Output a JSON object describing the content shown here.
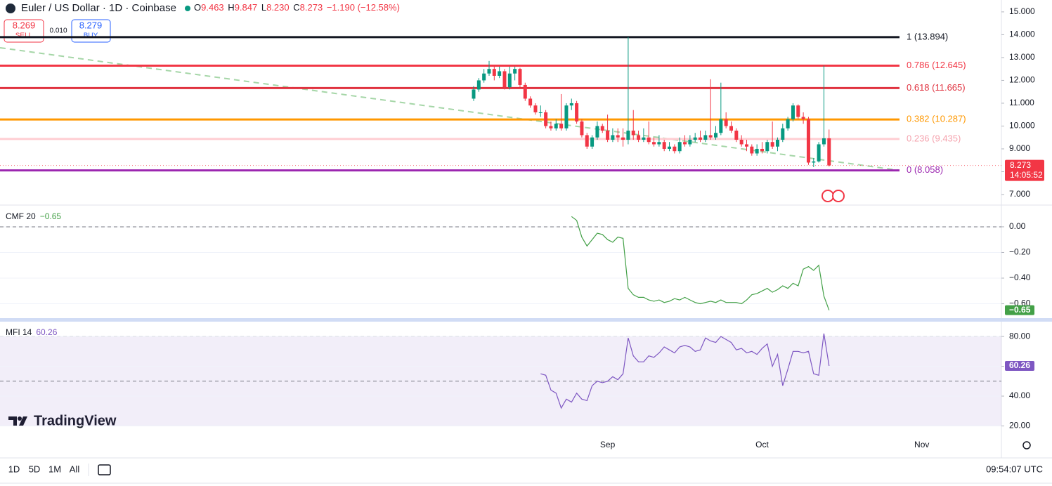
{
  "header": {
    "ohlc": [
      {
        "key": "O",
        "value": "9.463"
      },
      {
        "key": "H",
        "value": "9.847"
      },
      {
        "key": "L",
        "value": "8.230"
      },
      {
        "key": "C",
        "value": "8.273"
      }
    ],
    "change": "−1.190 (−12.58%)"
  },
  "trade": {
    "sell_price": "8.269",
    "sell": "SELL",
    "spread": "0.010",
    "buy_price": "8.279",
    "buy": "BUY"
  },
  "logo": "TradingView",
  "toolbar": {
    "ranges": [
      "1D",
      "5D",
      "1M",
      "All"
    ],
    "clock": "09:54:07 UTC"
  },
  "chart_data": [
    {
      "type": "candlestick",
      "title": "Euler / US Dollar · 1D · Coinbase",
      "categories": [
        null,
        null,
        null,
        null,
        null,
        null,
        null,
        null,
        null,
        null,
        null,
        null,
        null,
        null,
        null,
        null,
        null,
        null,
        null,
        null,
        null,
        null,
        null,
        null,
        null,
        null,
        "Sep",
        null,
        null,
        null,
        null,
        null,
        null,
        null,
        null,
        null,
        null,
        null,
        null,
        null,
        null,
        null,
        null,
        null,
        null,
        null,
        null,
        null,
        null,
        null,
        null,
        null,
        null,
        null,
        null,
        null,
        "Oct",
        null,
        null,
        null,
        null,
        null,
        null,
        null,
        null,
        null,
        null,
        null,
        null,
        null,
        null,
        null,
        null,
        null,
        null,
        null,
        null,
        null,
        null,
        null,
        null,
        null,
        null,
        null,
        null,
        null,
        null,
        "Nov",
        null,
        null,
        null,
        null,
        null,
        null,
        null,
        null,
        null,
        null,
        null,
        null,
        null,
        null,
        null
      ],
      "open": [
        11.2,
        11.6,
        12.0,
        12.3,
        12.5,
        12.2,
        12.4,
        11.7,
        12.3,
        12.5,
        11.8,
        11.2,
        10.9,
        10.6,
        10.6,
        10.0,
        9.9,
        10.1,
        9.9,
        10.9,
        11.0,
        10.2,
        9.6,
        9.1,
        9.5,
        10.0,
        9.8,
        9.4,
        9.6,
        9.5,
        9.4,
        9.8,
        9.6,
        9.4,
        9.5,
        9.3,
        9.2,
        9.3,
        9.0,
        9.1,
        8.9,
        9.3,
        9.2,
        9.4,
        9.5,
        9.4,
        9.6,
        9.5,
        9.7,
        10.3,
        10.0,
        9.8,
        9.4,
        9.2,
        9.1,
        8.8,
        9.0,
        8.9,
        9.3,
        9.1,
        9.4,
        9.9,
        10.3,
        10.9,
        10.4,
        10.3,
        8.4,
        8.45,
        9.2,
        9.463,
        null,
        null,
        null,
        null,
        null,
        null,
        null,
        null,
        null,
        null,
        null,
        null,
        null,
        null,
        null,
        null,
        null,
        null,
        null,
        null,
        null,
        null,
        null,
        null,
        null,
        null,
        null,
        null,
        null,
        null,
        null,
        null,
        null
      ],
      "high": [
        11.75,
        12.1,
        12.5,
        12.85,
        12.6,
        12.6,
        12.5,
        12.6,
        12.6,
        12.55,
        11.9,
        11.3,
        11.0,
        10.9,
        10.7,
        10.2,
        10.3,
        11.4,
        11.0,
        11.2,
        11.1,
        10.3,
        9.7,
        9.6,
        10.2,
        10.1,
        10.5,
        9.9,
        9.9,
        9.9,
        13.894,
        10.7,
        9.8,
        9.9,
        10.2,
        9.5,
        9.6,
        9.4,
        9.3,
        9.2,
        9.5,
        9.6,
        9.6,
        9.7,
        9.8,
        9.8,
        12.05,
        10.0,
        11.9,
        10.6,
        10.2,
        9.9,
        9.6,
        9.4,
        9.2,
        9.2,
        9.3,
        9.4,
        10.2,
        9.5,
        10.1,
        10.4,
        11.0,
        10.95,
        10.6,
        10.4,
        8.6,
        9.3,
        12.645,
        9.847,
        null,
        null,
        null,
        null,
        null,
        null,
        null,
        null,
        null,
        null,
        null,
        null,
        null,
        null,
        null,
        null,
        null,
        null,
        null,
        null,
        null,
        null,
        null,
        null,
        null,
        null,
        null,
        null,
        null,
        null,
        null,
        null,
        null
      ],
      "low": [
        11.1,
        11.5,
        11.9,
        12.2,
        12.0,
        12.1,
        11.6,
        11.6,
        12.0,
        11.7,
        11.1,
        10.8,
        10.5,
        10.4,
        9.9,
        9.8,
        9.8,
        9.8,
        9.8,
        10.7,
        10.1,
        9.5,
        9.0,
        9.0,
        9.4,
        9.7,
        9.3,
        9.3,
        9.3,
        9.1,
        9.2,
        9.4,
        9.3,
        9.3,
        9.2,
        9.1,
        9.1,
        8.9,
        8.9,
        8.8,
        8.8,
        9.1,
        9.1,
        9.3,
        9.3,
        9.3,
        9.4,
        9.4,
        9.6,
        9.9,
        9.7,
        9.3,
        9.1,
        8.9,
        8.7,
        8.7,
        8.8,
        8.8,
        9.0,
        8.9,
        9.3,
        9.8,
        10.2,
        10.3,
        10.1,
        8.3,
        8.2,
        8.4,
        9.1,
        8.23,
        null,
        null,
        null,
        null,
        null,
        null,
        null,
        null,
        null,
        null,
        null,
        null,
        null,
        null,
        null,
        null,
        null,
        null,
        null,
        null,
        null,
        null,
        null,
        null,
        null,
        null,
        null,
        null,
        null,
        null,
        null,
        null,
        null
      ],
      "close": [
        11.6,
        12.0,
        12.3,
        12.5,
        12.2,
        12.4,
        11.7,
        12.3,
        12.5,
        11.8,
        11.2,
        10.9,
        10.6,
        10.6,
        10.0,
        9.9,
        10.1,
        9.9,
        10.9,
        11.0,
        10.2,
        9.6,
        9.1,
        9.5,
        10.0,
        9.8,
        9.4,
        9.6,
        9.5,
        9.4,
        9.8,
        9.6,
        9.4,
        9.5,
        9.3,
        9.2,
        9.3,
        9.0,
        9.1,
        8.9,
        9.3,
        9.2,
        9.4,
        9.5,
        9.4,
        9.6,
        9.5,
        9.7,
        10.3,
        10.0,
        9.8,
        9.4,
        9.2,
        9.1,
        8.8,
        9.0,
        8.9,
        9.3,
        9.1,
        9.4,
        9.9,
        10.3,
        10.9,
        10.4,
        10.3,
        8.4,
        8.45,
        9.2,
        9.463,
        8.273,
        null,
        null,
        null,
        null,
        null,
        null,
        null,
        null,
        null,
        null,
        null,
        null,
        null,
        null,
        null,
        null,
        null,
        null,
        null,
        null,
        null,
        null,
        null,
        null,
        null,
        null,
        null,
        null,
        null,
        null,
        null,
        null,
        null
      ],
      "up_color": "#089981",
      "down_color": "#f23645",
      "ylim": [
        6.6,
        15.52
      ],
      "yticks": [
        {
          "value": 7,
          "label": "7.000"
        },
        {
          "value": 8,
          "label": "8.000"
        },
        {
          "value": 9,
          "label": "9.000"
        },
        {
          "value": 10,
          "label": "10.000"
        },
        {
          "value": 11,
          "label": "11.000"
        },
        {
          "value": 12,
          "label": "12.000"
        },
        {
          "value": 13,
          "label": "13.000"
        },
        {
          "value": 14,
          "label": "14.000"
        },
        {
          "value": 15,
          "label": "15.000"
        }
      ],
      "fib_levels": [
        {
          "label": "1 (13.894)",
          "value": 13.894,
          "color": "#131722"
        },
        {
          "label": "0.786 (12.645)",
          "value": 12.645,
          "color": "#f23645"
        },
        {
          "label": "0.618 (11.665)",
          "value": 11.665,
          "color": "#e0323f"
        },
        {
          "label": "0.382 (10.287)",
          "value": 10.287,
          "color": "#ff9800"
        },
        {
          "label": "0.236 (9.435)",
          "value": 9.435,
          "color": "#ffcdd2"
        },
        {
          "label": "0 (8.058)",
          "value": 8.058,
          "color": "#9c27b0"
        }
      ],
      "trendline": {
        "values": [
          13.43,
          8.06
        ],
        "color": "#a5d6a7"
      },
      "countdown": "14:05:52"
    },
    {
      "type": "line",
      "title": "CMF 20",
      "value_label": "−0.65",
      "color": "#43a047",
      "values": [
        null,
        null,
        null,
        null,
        null,
        null,
        null,
        null,
        null,
        null,
        null,
        null,
        null,
        null,
        null,
        null,
        null,
        null,
        null,
        0.08,
        0.05,
        -0.08,
        -0.15,
        -0.1,
        -0.05,
        -0.06,
        -0.1,
        -0.12,
        -0.08,
        -0.09,
        -0.48,
        -0.53,
        -0.55,
        -0.55,
        -0.57,
        -0.58,
        -0.57,
        -0.59,
        -0.58,
        -0.56,
        -0.57,
        -0.55,
        -0.57,
        -0.59,
        -0.6,
        -0.59,
        -0.58,
        -0.59,
        -0.57,
        -0.59,
        -0.59,
        -0.59,
        -0.6,
        -0.57,
        -0.53,
        -0.52,
        -0.5,
        -0.48,
        -0.51,
        -0.49,
        -0.46,
        -0.48,
        -0.44,
        -0.46,
        -0.33,
        -0.31,
        -0.34,
        -0.3,
        -0.54,
        -0.65,
        null,
        null,
        null,
        null,
        null,
        null,
        null,
        null,
        null,
        null,
        null,
        null,
        null,
        null,
        null,
        null,
        null,
        null,
        null,
        null,
        null,
        null,
        null,
        null,
        null,
        null,
        null,
        null,
        null,
        null,
        null,
        null,
        null
      ],
      "ylim": [
        -0.723,
        0.153
      ],
      "yticks": [
        {
          "value": 0,
          "label": "0.00"
        },
        {
          "value": -0.2,
          "label": "−0.20"
        },
        {
          "value": -0.4,
          "label": "−0.40"
        },
        {
          "value": -0.6,
          "label": "−0.60"
        }
      ],
      "zero_line": 0
    },
    {
      "type": "line",
      "title": "MFI 14",
      "color": "#7e57c2",
      "values": [
        null,
        null,
        null,
        null,
        null,
        null,
        null,
        null,
        null,
        null,
        null,
        null,
        null,
        55,
        54,
        44,
        42,
        32,
        38,
        36,
        42,
        38,
        37,
        47,
        50,
        49,
        50,
        53,
        51,
        55,
        79,
        67,
        63,
        63,
        67,
        66,
        69,
        73,
        71,
        69,
        73,
        74,
        73,
        70,
        71,
        79,
        77,
        76,
        80,
        78,
        76,
        71,
        72,
        69,
        70,
        68,
        72,
        75,
        60,
        68,
        47,
        58,
        70,
        70,
        69,
        70,
        55,
        54,
        82,
        60.26,
        null,
        null,
        null,
        null,
        null,
        null,
        null,
        null,
        null,
        null,
        null,
        null,
        null,
        null,
        null,
        null,
        null,
        null,
        null,
        null,
        null,
        null,
        null,
        null,
        null,
        null,
        null,
        null,
        null,
        null,
        null,
        null,
        null
      ],
      "ylim": [
        17.4,
        89
      ],
      "yticks": [
        {
          "value": 20,
          "label": "20.00"
        },
        {
          "value": 40,
          "label": "40.00"
        },
        {
          "value": 60,
          "label": "60.00"
        },
        {
          "value": 80,
          "label": "80.00"
        }
      ],
      "bands": [
        80,
        50,
        20
      ]
    }
  ]
}
